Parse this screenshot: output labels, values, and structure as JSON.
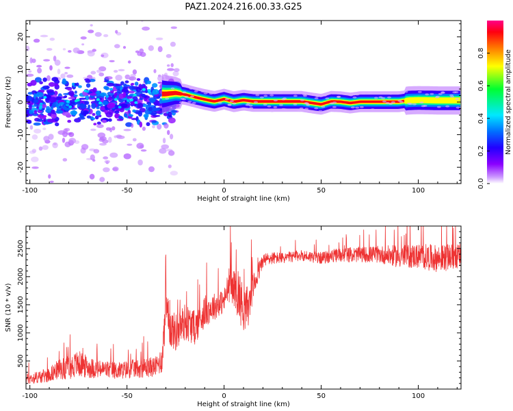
{
  "title": "PAZ1.2024.216.00.33.G25",
  "chart_data": [
    {
      "type": "heatmap",
      "xlabel": "Height of straight line (km)",
      "ylabel": "Frequency (Hz)",
      "xlim": [
        -102,
        122
      ],
      "ylim": [
        -25,
        25
      ],
      "xticks": [
        -100,
        -50,
        0,
        50,
        100
      ],
      "yticks": [
        -20,
        -10,
        0,
        10,
        20
      ],
      "xtick_labels": [
        "-100",
        "-50",
        "0",
        "50",
        "100"
      ],
      "ytick_labels": [
        "-20",
        "-10",
        "0",
        "10",
        "20"
      ],
      "description_points": {
        "ridge_x": [
          -30,
          -25,
          -20,
          -15,
          -10,
          -5,
          0,
          5,
          10,
          15,
          20,
          30,
          40,
          50,
          55,
          60,
          65,
          70,
          80,
          90,
          95,
          100,
          110,
          120
        ],
        "ridge_freq": [
          2.5,
          2.8,
          2.3,
          1.5,
          0.8,
          0.2,
          0.9,
          0.1,
          0.6,
          0.2,
          0.2,
          0.2,
          0.2,
          -0.7,
          0.2,
          0.1,
          -0.3,
          0.1,
          0.1,
          0.1,
          0.5,
          0.6,
          0.5,
          0.5
        ]
      },
      "grid": false,
      "colorbar": {
        "label": "Normalized spectral amplitude",
        "ticks": [
          0.0,
          0.2,
          0.4,
          0.6,
          0.8
        ],
        "tick_labels": [
          "0.0",
          "0.2",
          "0.4",
          "0.6",
          "0.8"
        ],
        "range": [
          0,
          1
        ],
        "colors": [
          "#ffffff",
          "#cc99ff",
          "#8a00ff",
          "#2200ff",
          "#0060ff",
          "#00e0ff",
          "#00ff40",
          "#ffff00",
          "#ff7000",
          "#ff0010",
          "#ff0080"
        ]
      }
    },
    {
      "type": "line",
      "xlabel": "Height of straight line (km)",
      "ylabel": "SNR (10 * v/v)",
      "xlim": [
        -102,
        122
      ],
      "ylim": [
        0,
        2900
      ],
      "xticks": [
        -100,
        -50,
        0,
        50,
        100
      ],
      "yticks": [
        500,
        1000,
        1500,
        2000,
        2500
      ],
      "xtick_labels": [
        "-100",
        "-50",
        "0",
        "50",
        "100"
      ],
      "ytick_labels": [
        "500",
        "1000",
        "1500",
        "2000",
        "2500"
      ],
      "grid": false,
      "series": [
        {
          "color": "#ee3333",
          "x": [
            -102,
            -95,
            -90,
            -85,
            -80,
            -75,
            -70,
            -65,
            -60,
            -55,
            -50,
            -45,
            -40,
            -35,
            -32,
            -30,
            -28,
            -25,
            -20,
            -15,
            -10,
            -5,
            0,
            3,
            5,
            7,
            10,
            13,
            15,
            18,
            20,
            25,
            30,
            40,
            50,
            60,
            70,
            80,
            90,
            100,
            110,
            122
          ],
          "values": [
            150,
            180,
            220,
            300,
            320,
            380,
            330,
            300,
            300,
            280,
            300,
            320,
            330,
            350,
            450,
            1300,
            1000,
            900,
            1100,
            1000,
            1300,
            1400,
            1500,
            1800,
            1700,
            1600,
            1300,
            1400,
            1750,
            2050,
            2250,
            2300,
            2300,
            2350,
            2300,
            2350,
            2350,
            2350,
            2300,
            2300,
            2250,
            2300
          ],
          "spread": [
            120,
            140,
            160,
            220,
            260,
            300,
            240,
            200,
            200,
            190,
            200,
            210,
            220,
            220,
            300,
            500,
            450,
            420,
            420,
            380,
            350,
            300,
            260,
            420,
            380,
            600,
            500,
            450,
            300,
            220,
            160,
            140,
            120,
            120,
            130,
            160,
            170,
            190,
            250,
            280,
            300,
            280
          ]
        }
      ]
    }
  ]
}
